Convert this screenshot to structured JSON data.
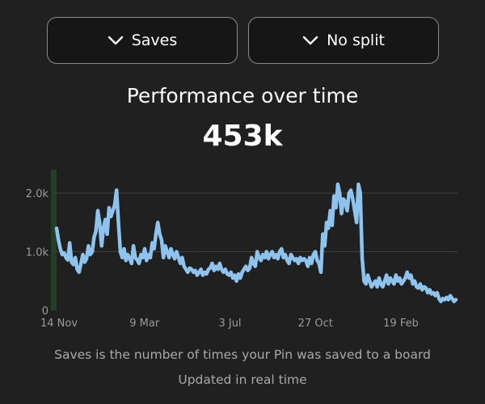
{
  "controls": {
    "metric_dropdown": {
      "label": "Saves",
      "icon": "chevron-down-icon"
    },
    "split_dropdown": {
      "label": "No split",
      "icon": "chevron-down-icon"
    }
  },
  "header": {
    "title": "Performance over time",
    "total": "453k"
  },
  "chart_data": {
    "type": "line",
    "title": "",
    "xlabel": "",
    "ylabel": "",
    "ylim": [
      0,
      2400
    ],
    "y_ticks": [
      0,
      1000,
      2000
    ],
    "y_tick_labels": [
      "0",
      "1.0k",
      "2.0k"
    ],
    "x_tick_labels": [
      "14 Nov",
      "9 Mar",
      "3 Jul",
      "27 Oct",
      "19 Feb"
    ],
    "grid": true,
    "line_color": "#8ec3ee",
    "highlight_band_color": "#233f26",
    "series": [
      {
        "values": [
          1400,
          1200,
          1050,
          950,
          980,
          900,
          860,
          1150,
          820,
          780,
          900,
          700,
          650,
          800,
          950,
          820,
          880,
          1100,
          950,
          1000,
          1250,
          1350,
          1700,
          1500,
          1100,
          1400,
          1550,
          1300,
          1750,
          1600,
          1700,
          1800,
          2050,
          1500,
          1000,
          900,
          1050,
          850,
          950,
          880,
          800,
          1100,
          900,
          860,
          800,
          950,
          900,
          1050,
          850,
          950,
          900,
          1150,
          1050,
          1300,
          1500,
          1300,
          1200,
          900,
          1100,
          1000,
          900,
          1050,
          950,
          880,
          1000,
          900,
          800,
          900,
          750,
          700,
          650,
          720,
          700,
          650,
          680,
          600,
          650,
          700,
          600,
          650,
          620,
          700,
          720,
          800,
          680,
          750,
          700,
          800,
          700,
          650,
          700,
          620,
          600,
          650,
          550,
          600,
          500,
          620,
          550,
          650,
          700,
          750,
          680,
          720,
          900,
          800,
          750,
          1000,
          900,
          850,
          950,
          900,
          1000,
          880,
          950,
          1000,
          900,
          950,
          880,
          1000,
          1050,
          900,
          950,
          850,
          800,
          950,
          900,
          850,
          880,
          800,
          900,
          850,
          880,
          850,
          750,
          900,
          800,
          950,
          1000,
          850,
          800,
          650,
          1300,
          1100,
          1500,
          1400,
          1700,
          1450,
          1950,
          1750,
          2150,
          2000,
          1650,
          1900,
          1850,
          1700,
          2000,
          2050,
          1900,
          1700,
          1500,
          2150,
          2000,
          900,
          500,
          450,
          600,
          500,
          400,
          450,
          500,
          400,
          550,
          450,
          400,
          500,
          600,
          450,
          550,
          500,
          450,
          600,
          500,
          550,
          450,
          500,
          550,
          650,
          550,
          600,
          450,
          500,
          400,
          380,
          450,
          350,
          400,
          380,
          300,
          350,
          280,
          300,
          250,
          300,
          200,
          150,
          200,
          180,
          220,
          180,
          250,
          200,
          150,
          180
        ]
      }
    ]
  },
  "footer": {
    "description": "Saves is the number of times your Pin was saved to a board",
    "updated": "Updated in real time"
  }
}
